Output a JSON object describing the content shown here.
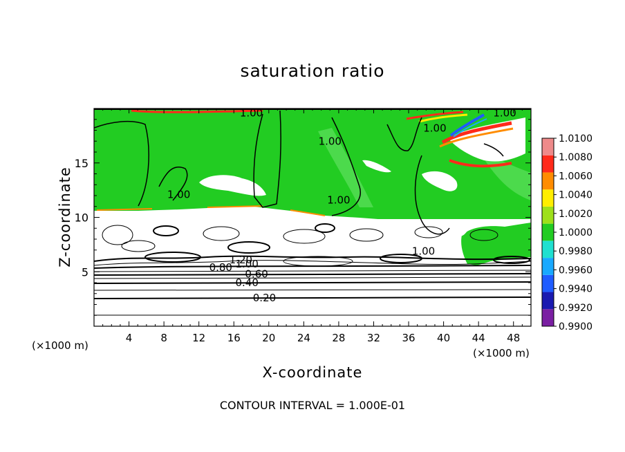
{
  "chart_data": {
    "type": "heatmap",
    "title": "saturation ratio",
    "xlabel": "X-coordinate",
    "ylabel": "Z-coordinate",
    "x_unit_label_left": "(×1000 m)",
    "x_unit_label_right": "(×1000 m)",
    "footer": "CONTOUR INTERVAL = 1.000E-01",
    "xlim": [
      0,
      50
    ],
    "ylim": [
      0,
      20
    ],
    "x_ticks": [
      4,
      8,
      12,
      16,
      20,
      24,
      28,
      32,
      36,
      40,
      44,
      48
    ],
    "y_ticks": [
      5,
      10,
      15
    ],
    "colorbar": {
      "levels": [
        0.99,
        0.992,
        0.994,
        0.996,
        0.998,
        1.0,
        1.002,
        1.004,
        1.006,
        1.008,
        1.01
      ],
      "labels": [
        "0.9900",
        "0.9920",
        "0.9940",
        "0.9960",
        "0.9980",
        "1.0000",
        "1.0020",
        "1.0040",
        "1.0060",
        "1.0080",
        "1.0100"
      ],
      "colors": [
        "#7a1fa2",
        "#1a1ab0",
        "#1f5cff",
        "#19a9ff",
        "#20e0d0",
        "#22cc22",
        "#9ee01a",
        "#ffee00",
        "#ff8c00",
        "#ff2a1a",
        "#ee8a8a"
      ]
    },
    "contour_labels": [
      {
        "text": "0.20",
        "x": 19.5,
        "z": 2.6
      },
      {
        "text": "0.40",
        "x": 17.5,
        "z": 4.0
      },
      {
        "text": "0.60",
        "x": 18.6,
        "z": 4.8
      },
      {
        "text": "0.80",
        "x": 14.5,
        "z": 5.4
      },
      {
        "text": "1.00",
        "x": 17.5,
        "z": 5.7
      },
      {
        "text": "1.20",
        "x": 16.8,
        "z": 6.1
      },
      {
        "text": "1.00",
        "x": 37.7,
        "z": 6.9
      },
      {
        "text": "1.00",
        "x": 9.7,
        "z": 12.1
      },
      {
        "text": "1.00",
        "x": 27.0,
        "z": 17.0
      },
      {
        "text": "1.00",
        "x": 28.0,
        "z": 11.6
      },
      {
        "text": "1.00",
        "x": 39.0,
        "z": 18.2
      },
      {
        "text": "1.00",
        "x": 18.0,
        "z": 19.6
      },
      {
        "text": "1.00",
        "x": 47.0,
        "z": 19.6
      }
    ]
  }
}
